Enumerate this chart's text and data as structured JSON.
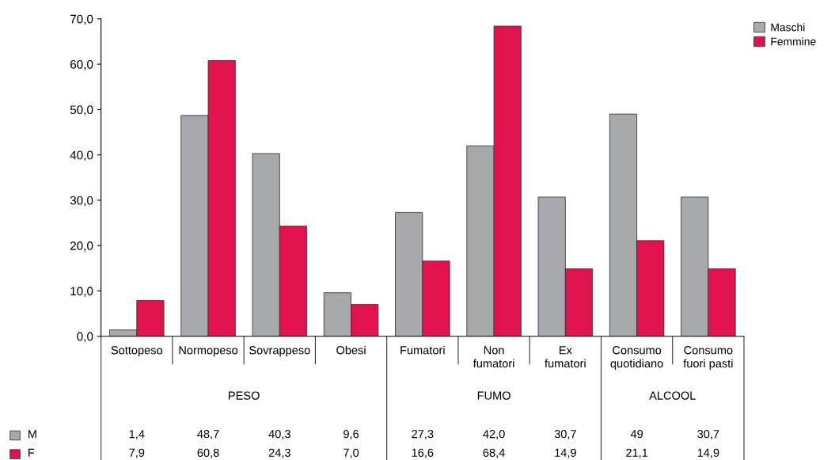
{
  "chart_data": {
    "type": "bar",
    "categories": [
      "Sottopeso",
      "Normopeso",
      "Sovrappeso",
      "Obesi",
      "Fumatori",
      "Non\nfumatori",
      "Ex\nfumatori",
      "Consumo\nquotidiano",
      "Consumo\nfuori pasti"
    ],
    "series": [
      {
        "name": "Maschi",
        "color": "#a7a9ac",
        "values": [
          1.4,
          48.7,
          40.3,
          9.6,
          27.3,
          42.0,
          30.7,
          49,
          30.7
        ],
        "value_labels": [
          "1,4",
          "48,7",
          "40,3",
          "9,6",
          "27,3",
          "42,0",
          "30,7",
          "49",
          "30,7"
        ]
      },
      {
        "name": "Femmine",
        "color": "#e0134f",
        "values": [
          7.9,
          60.8,
          24.3,
          7.0,
          16.6,
          68.4,
          14.9,
          21.1,
          14.9
        ],
        "value_labels": [
          "7,9",
          "60,8",
          "24,3",
          "7,0",
          "16,6",
          "68,4",
          "14,9",
          "21,1",
          "14,9"
        ]
      }
    ],
    "ylim": [
      0,
      70
    ],
    "yticks": [
      {
        "value": 0,
        "label": "0,0"
      },
      {
        "value": 10,
        "label": "10,0"
      },
      {
        "value": 20,
        "label": "20,0"
      },
      {
        "value": 30,
        "label": "30,0"
      },
      {
        "value": 40,
        "label": "40,0"
      },
      {
        "value": 50,
        "label": "50,0"
      },
      {
        "value": 60,
        "label": "60,0"
      },
      {
        "value": 70,
        "label": "70,0"
      }
    ],
    "annotations": [
      "PESO",
      "FUMO",
      "ALCOOL",
      "M",
      "F"
    ],
    "grid": false,
    "legend": "top right"
  }
}
